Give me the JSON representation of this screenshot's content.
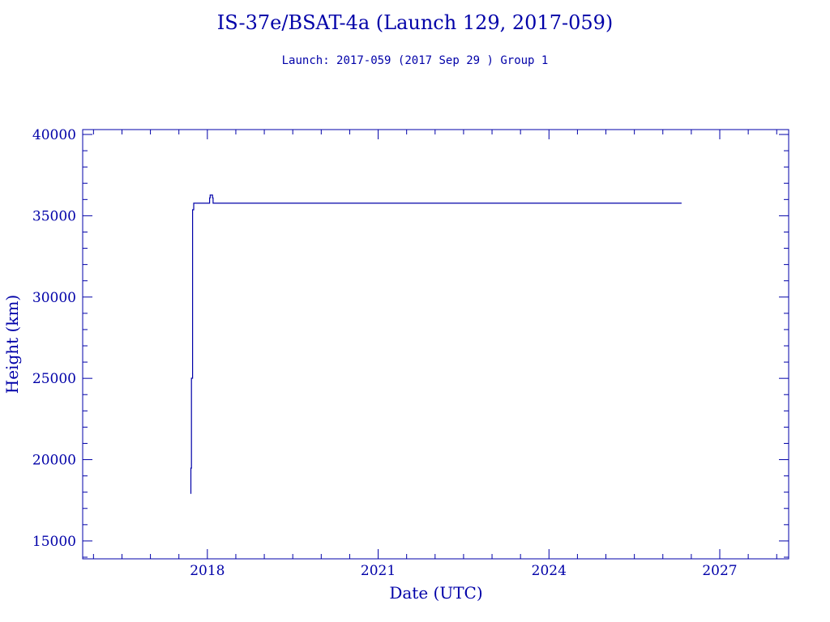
{
  "chart_data": {
    "type": "line",
    "title": "IS-37e/BSAT-4a (Launch 129, 2017-059)",
    "subtitle": "Launch: 2017-059  (2017 Sep 29 )  Group 1",
    "xlabel": "Date (UTC)",
    "ylabel": "Height (km)",
    "xlim": [
      2015.81,
      2028.21
    ],
    "ylim": [
      13900,
      40300
    ],
    "xticks": [
      2018,
      2021,
      2024,
      2027
    ],
    "xtick_labels": [
      "2018",
      "2021",
      "2024",
      "2027"
    ],
    "yticks": [
      15000,
      20000,
      25000,
      30000,
      35000,
      40000
    ],
    "ytick_labels": [
      "15000",
      "20000",
      "25000",
      "30000",
      "35000",
      "40000"
    ],
    "grid": false,
    "color": "#0000a8",
    "series": [
      {
        "x": [
          2017.71,
          2017.71,
          2017.72,
          2017.72,
          2017.74,
          2017.74,
          2017.76,
          2017.76,
          2017.77,
          2018.04,
          2018.04,
          2018.05,
          2018.05,
          2018.09,
          2018.09,
          2018.1,
          2018.1,
          2026.33
        ],
        "y": [
          17900,
          19480,
          19480,
          25010,
          25010,
          35370,
          35370,
          35770,
          35770,
          35770,
          36100,
          36100,
          36270,
          36270,
          36100,
          36100,
          35770,
          35770
        ]
      }
    ]
  }
}
